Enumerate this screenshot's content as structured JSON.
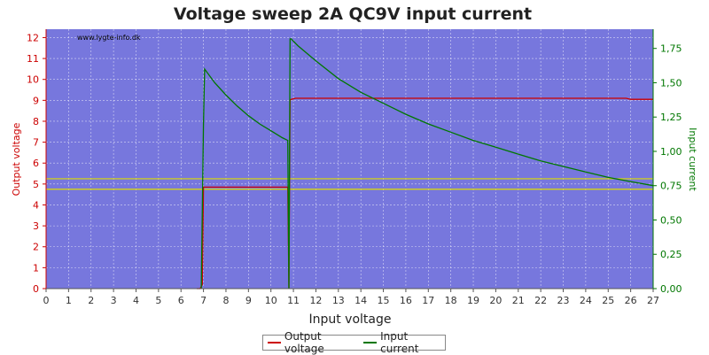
{
  "chart_data": {
    "type": "line",
    "title": "Voltage sweep 2A QC9V input current",
    "xlabel": "Input voltage",
    "ylabel_left": "Output voltage",
    "ylabel_right": "Input current",
    "watermark": "www.lygte-info.dk",
    "xlim": [
      0,
      27
    ],
    "ylim_left": [
      0,
      12.4
    ],
    "ylim_right": [
      0,
      1.89
    ],
    "x_ticks": [
      0,
      1,
      2,
      3,
      4,
      5,
      6,
      7,
      8,
      9,
      10,
      11,
      12,
      13,
      14,
      15,
      16,
      17,
      18,
      19,
      20,
      21,
      22,
      23,
      24,
      25,
      26,
      27
    ],
    "y_left_ticks": [
      0,
      1,
      2,
      3,
      4,
      5,
      6,
      7,
      8,
      9,
      10,
      11,
      12
    ],
    "y_right_ticks": [
      "0,00",
      "0,25",
      "0,50",
      "0,75",
      "1,00",
      "1,25",
      "1,50",
      "1,75"
    ],
    "y_right_tick_values": [
      0,
      0.25,
      0.5,
      0.75,
      1.0,
      1.25,
      1.5,
      1.75
    ],
    "grid": true,
    "background": "#7777dd",
    "reference_lines_left": [
      5.25,
      4.75
    ],
    "reference_color": "#dddd00",
    "series": [
      {
        "name": "Output voltage",
        "axis": "left",
        "color": "#cc0000",
        "x": [
          6.7,
          6.85,
          6.95,
          7.0,
          8.0,
          9.0,
          10.0,
          10.75,
          10.8,
          10.85,
          10.9,
          11.1,
          12,
          14,
          16,
          18,
          20,
          22,
          24,
          25.8,
          26,
          27
        ],
        "y": [
          0,
          0,
          0.2,
          4.85,
          4.85,
          4.85,
          4.85,
          4.85,
          0,
          9.0,
          9.05,
          9.1,
          9.1,
          9.1,
          9.1,
          9.1,
          9.1,
          9.1,
          9.1,
          9.1,
          9.05,
          9.05
        ]
      },
      {
        "name": "Input current",
        "axis": "right",
        "color": "#007700",
        "x": [
          6.9,
          7.0,
          7.05,
          7.5,
          8.0,
          8.5,
          9.0,
          9.5,
          10.0,
          10.5,
          10.75,
          10.8,
          10.85,
          10.9,
          11.2,
          12,
          13,
          14,
          15,
          16,
          17,
          18,
          19,
          20,
          21,
          22,
          23,
          24,
          25,
          26,
          27
        ],
        "y": [
          0,
          1.2,
          1.6,
          1.5,
          1.41,
          1.33,
          1.26,
          1.2,
          1.15,
          1.1,
          1.08,
          0,
          1.82,
          1.82,
          1.77,
          1.66,
          1.53,
          1.43,
          1.35,
          1.27,
          1.2,
          1.14,
          1.08,
          1.03,
          0.98,
          0.93,
          0.89,
          0.85,
          0.81,
          0.78,
          0.75
        ]
      }
    ]
  }
}
